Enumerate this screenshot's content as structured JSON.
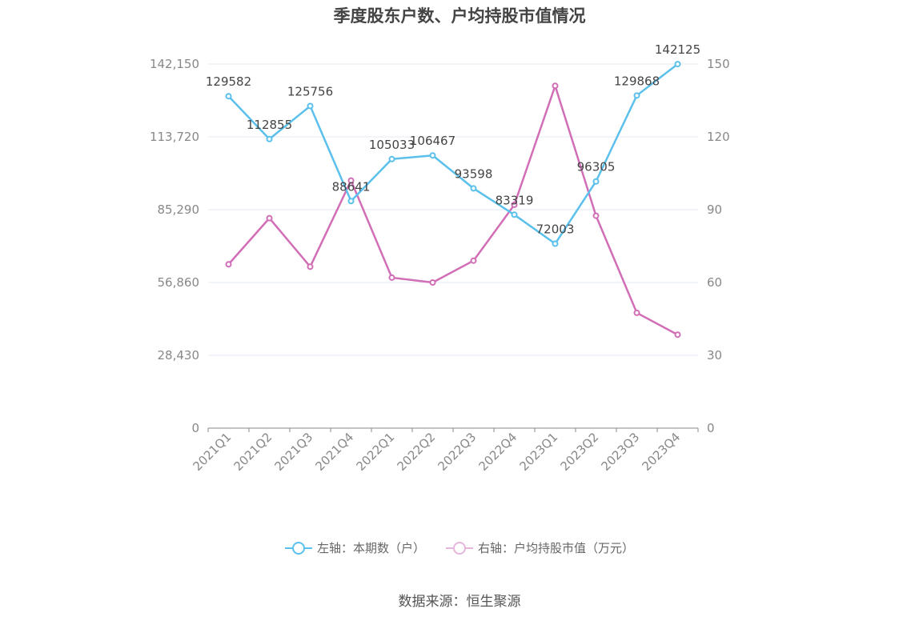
{
  "chart_data": {
    "type": "line",
    "title": "季度股东户数、户均持股市值情况",
    "categories": [
      "2021Q1",
      "2021Q2",
      "2021Q3",
      "2021Q4",
      "2022Q1",
      "2022Q2",
      "2022Q3",
      "2022Q4",
      "2023Q1",
      "2023Q2",
      "2023Q3",
      "2023Q4"
    ],
    "left_axis": {
      "min": 0,
      "max": 142150,
      "ticks": [
        0,
        28430,
        56860,
        85290,
        113720,
        142150
      ],
      "tick_labels": [
        "0",
        "28,430",
        "56,860",
        "85,290",
        "113,720",
        "142,150"
      ]
    },
    "right_axis": {
      "min": 0,
      "max": 150,
      "ticks": [
        0,
        30,
        60,
        90,
        120,
        150
      ],
      "tick_labels": [
        "0",
        "30",
        "60",
        "90",
        "120",
        "150"
      ]
    },
    "series": [
      {
        "name": "左轴：本期数（户）",
        "axis": "left",
        "color": "#5bc0eb",
        "values": [
          129582,
          112855,
          125756,
          88641,
          105033,
          106467,
          93598,
          83319,
          72003,
          96305,
          129868,
          142125
        ],
        "data_labels": [
          "129582",
          "112855",
          "125756",
          "88641",
          "105033",
          "106467",
          "93598",
          "83319",
          "72003",
          "96305",
          "129868",
          "142125"
        ]
      },
      {
        "name": "右轴：户均持股市值（万元）",
        "axis": "right",
        "color": "#d16eb6",
        "values": [
          67.5,
          86.5,
          66.5,
          102.0,
          62.0,
          60.0,
          69.0,
          92.0,
          141.0,
          87.5,
          47.5,
          38.5
        ]
      }
    ],
    "legend_position": "bottom-center",
    "grid": true
  },
  "source": "数据来源：恒生聚源"
}
